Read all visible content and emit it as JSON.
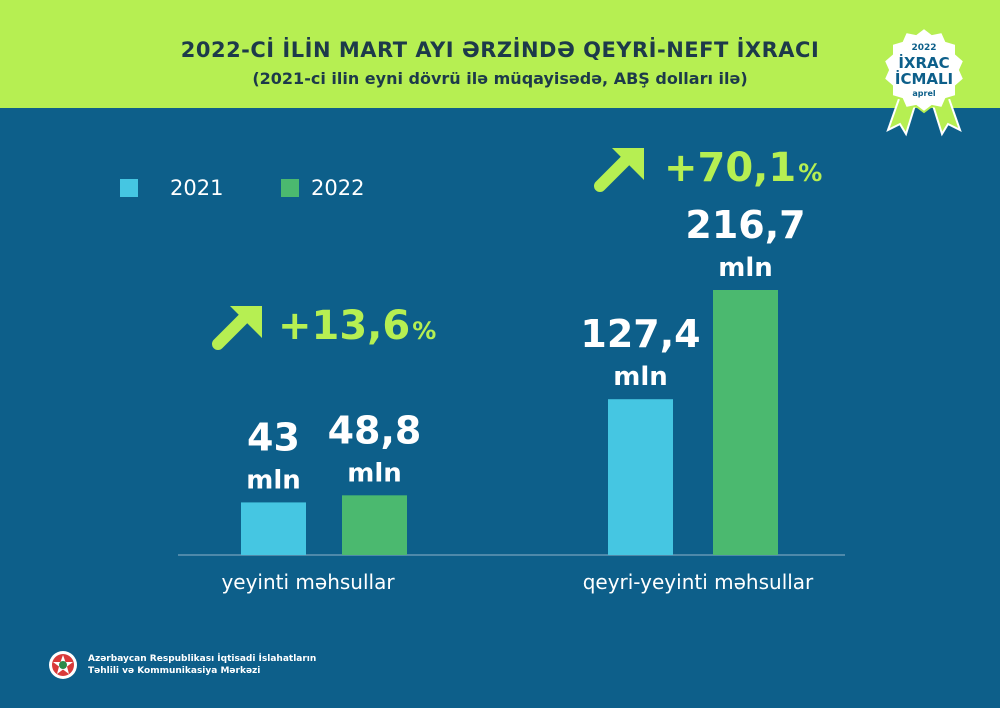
{
  "header": {
    "title": "2022-Cİ İLİN MART AYI ƏRZİNDƏ QEYRİ-NEFT İXRACI",
    "subtitle": "(2021-ci ilin eyni dövrü ilə müqayisədə, ABŞ dolları ilə)",
    "background_color": "#b6ef52"
  },
  "badge": {
    "year": "2022",
    "line1": "İXRAC",
    "line2": "İCMALI",
    "month": "aprel",
    "icon": "rosette-badge-icon"
  },
  "colors": {
    "series_2021": "#45c6e2",
    "series_2022": "#4bb96f",
    "accent": "#b6ef52",
    "background": "#0d5f8a"
  },
  "chart_data": {
    "type": "bar",
    "categories": [
      "yeyinti məhsullar",
      "qeyri-yeyinti məhsullar"
    ],
    "series": [
      {
        "name": "2021",
        "values": [
          43,
          127.4
        ],
        "labels": [
          "43",
          "127,4"
        ]
      },
      {
        "name": "2022",
        "values": [
          48.8,
          216.7
        ],
        "labels": [
          "48,8",
          "216,7"
        ]
      }
    ],
    "unit": "mln",
    "growth": [
      {
        "category": "yeyinti məhsullar",
        "value": "+13,6",
        "suffix": "%"
      },
      {
        "category": "qeyri-yeyinti məhsullar",
        "value": "+70,1",
        "suffix": "%"
      }
    ],
    "ylim": [
      0,
      216.7
    ],
    "legend_position": "top-left",
    "grid": false
  },
  "footer": {
    "org_line1": "Azərbaycan Respublikası İqtisadi İslahatların",
    "org_line2": "Təhlili və Kommunikasiya Mərkəzi",
    "logo_icon": "emblem-icon"
  }
}
